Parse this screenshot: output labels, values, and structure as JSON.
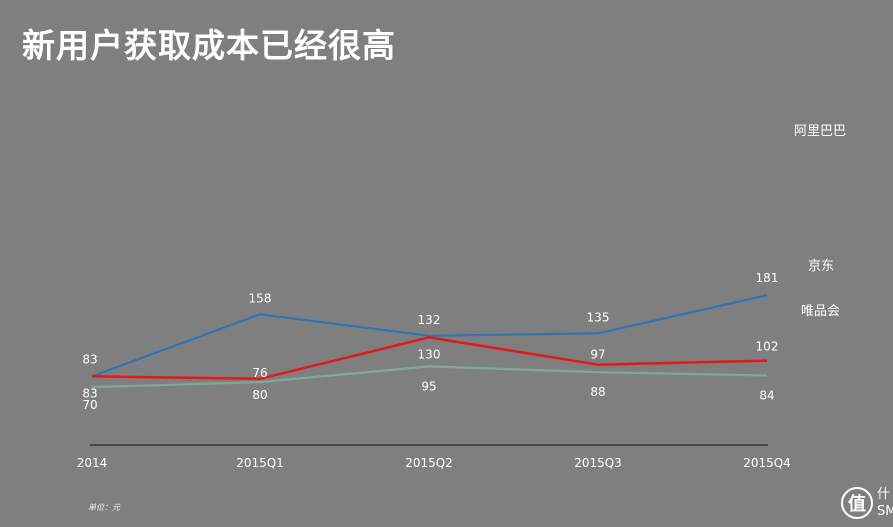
{
  "title": "新用户获取成本已经很高",
  "unit_note": "单位：元",
  "watermark": {
    "glyph": "值",
    "line1": "什",
    "line2": "SM"
  },
  "chart_data": {
    "type": "line",
    "categories": [
      "2014",
      "2015Q1",
      "2015Q2",
      "2015Q3",
      "2015Q4"
    ],
    "ylim": [
      0,
      200
    ],
    "grid": false,
    "legend": "right",
    "series": [
      {
        "name": "阿里巴巴",
        "color": "#2e75b6",
        "values": [
          83,
          158,
          132,
          135,
          181
        ]
      },
      {
        "name": "京东",
        "color": "#e01b1b",
        "values": [
          83,
          80,
          130,
          97,
          102
        ]
      },
      {
        "name": "唯品会",
        "color": "#7fa89b",
        "values": [
          70,
          76,
          95,
          88,
          84
        ]
      }
    ]
  }
}
